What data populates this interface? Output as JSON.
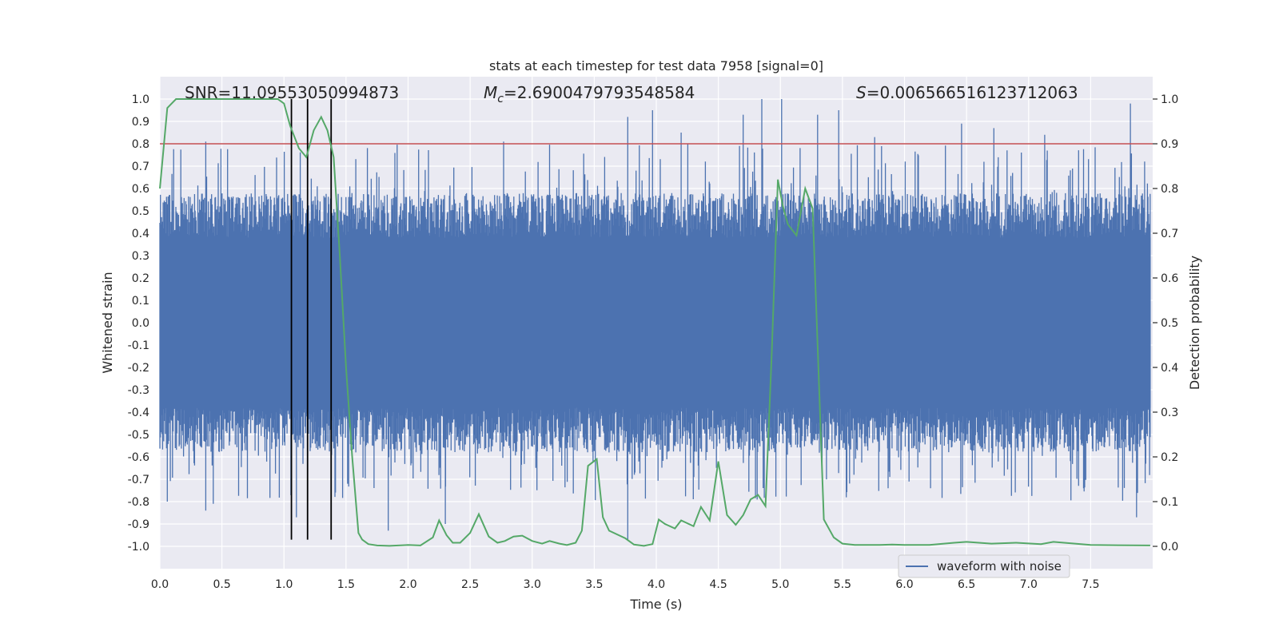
{
  "chart_data": {
    "type": "line",
    "title": "stats at each timestep for test data 7958 [signal=0]",
    "xlabel": "Time (s)",
    "ylabel": "Whitened strain",
    "y2label": "Detection probability",
    "xlim": [
      0.0,
      8.0
    ],
    "ylim": [
      -1.1,
      1.1
    ],
    "y2lim": [
      -0.05,
      1.05
    ],
    "xticks": [
      0.0,
      0.5,
      1.0,
      1.5,
      2.0,
      2.5,
      3.0,
      3.5,
      4.0,
      4.5,
      5.0,
      5.5,
      6.0,
      6.5,
      7.0,
      7.5
    ],
    "xtick_labels": [
      "0.0",
      "0.5",
      "1.0",
      "1.5",
      "2.0",
      "2.5",
      "3.0",
      "3.5",
      "4.0",
      "4.5",
      "5.0",
      "5.5",
      "6.0",
      "6.5",
      "7.0",
      "7.5"
    ],
    "yticks": [
      1.0,
      0.9,
      0.8,
      0.7,
      0.6,
      0.5,
      0.4,
      0.3,
      0.2,
      0.1,
      0.0,
      -0.1,
      -0.2,
      -0.3,
      -0.4,
      -0.5,
      -0.6,
      -0.7,
      -0.8,
      -0.9,
      -1.0
    ],
    "ytick_labels": [
      "1.0",
      "0.9",
      "0.8",
      "0.7",
      "0.6",
      "0.5",
      "0.4",
      "0.3",
      "0.2",
      "0.1",
      "0.0",
      "-0.1",
      "-0.2",
      "-0.3",
      "-0.4",
      "-0.5",
      "-0.6",
      "-0.7",
      "-0.8",
      "-0.9",
      "-1.0"
    ],
    "y2ticks": [
      1.0,
      0.9,
      0.8,
      0.7,
      0.6,
      0.5,
      0.4,
      0.3,
      0.2,
      0.1,
      0.0
    ],
    "y2tick_labels": [
      "1.0",
      "0.9",
      "0.8",
      "0.7",
      "0.6",
      "0.5",
      "0.4",
      "0.3",
      "0.2",
      "0.1",
      "0.0"
    ],
    "annotations": {
      "snr": "SNR=11.09553050994873",
      "mc": "=2.6900479793548584",
      "mc_symbol": "M",
      "mc_sub": "c",
      "s_symbol": "S",
      "s": "=0.006566516123712063"
    },
    "legend": [
      "waveform with noise"
    ],
    "threshold_line": {
      "y2": 0.9,
      "color": "#c44e52"
    },
    "vertical_markers": [
      1.06,
      1.19,
      1.38
    ],
    "series": [
      {
        "name": "waveform with noise",
        "axis": "left",
        "color": "#4c72b0",
        "core_amplitude": 0.38,
        "peaks": [
          {
            "t": 0.37,
            "v": 0.81
          },
          {
            "t": 0.37,
            "v": -0.84
          },
          {
            "t": 0.06,
            "v": -0.8
          },
          {
            "t": 0.43,
            "v": -0.81
          },
          {
            "t": 1.1,
            "v": -0.87
          },
          {
            "t": 1.84,
            "v": -0.93
          },
          {
            "t": 2.3,
            "v": -0.9
          },
          {
            "t": 2.77,
            "v": 0.81
          },
          {
            "t": 3.77,
            "v": 0.92
          },
          {
            "t": 3.77,
            "v": -0.97
          },
          {
            "t": 3.97,
            "v": 0.95
          },
          {
            "t": 4.2,
            "v": 0.85
          },
          {
            "t": 4.7,
            "v": 0.93
          },
          {
            "t": 4.85,
            "v": 1.0
          },
          {
            "t": 5.01,
            "v": 1.0
          },
          {
            "t": 5.3,
            "v": 0.93
          },
          {
            "t": 5.47,
            "v": 0.95
          },
          {
            "t": 5.76,
            "v": 0.83
          },
          {
            "t": 6.46,
            "v": 0.89
          },
          {
            "t": 6.72,
            "v": 0.87
          },
          {
            "t": 7.13,
            "v": 0.84
          },
          {
            "t": 7.82,
            "v": 0.98
          },
          {
            "t": 7.87,
            "v": -0.87
          }
        ]
      },
      {
        "name": "detection probability",
        "axis": "right",
        "color": "#55a868",
        "x": [
          0.0,
          0.06,
          0.13,
          0.25,
          0.5,
          0.75,
          0.95,
          1.0,
          1.05,
          1.12,
          1.18,
          1.24,
          1.3,
          1.35,
          1.4,
          1.45,
          1.5,
          1.55,
          1.6,
          1.63,
          1.68,
          1.75,
          1.85,
          2.0,
          2.1,
          2.2,
          2.25,
          2.31,
          2.36,
          2.42,
          2.5,
          2.57,
          2.65,
          2.72,
          2.78,
          2.85,
          2.92,
          3.0,
          3.08,
          3.14,
          3.22,
          3.28,
          3.35,
          3.4,
          3.45,
          3.52,
          3.57,
          3.62,
          3.75,
          3.82,
          3.9,
          3.97,
          4.02,
          4.07,
          4.15,
          4.2,
          4.3,
          4.36,
          4.43,
          4.5,
          4.57,
          4.64,
          4.7,
          4.76,
          4.82,
          4.88,
          4.93,
          4.98,
          5.02,
          5.06,
          5.13,
          5.2,
          5.26,
          5.3,
          5.35,
          5.43,
          5.5,
          5.6,
          5.8,
          5.9,
          6.0,
          6.2,
          6.4,
          6.5,
          6.7,
          6.9,
          7.1,
          7.2,
          7.5,
          7.98
        ],
        "values": [
          0.8,
          0.98,
          1.0,
          1.0,
          1.0,
          1.0,
          1.0,
          0.99,
          0.94,
          0.89,
          0.87,
          0.93,
          0.96,
          0.93,
          0.87,
          0.65,
          0.4,
          0.2,
          0.03,
          0.015,
          0.005,
          0.002,
          0.001,
          0.003,
          0.002,
          0.02,
          0.058,
          0.025,
          0.008,
          0.008,
          0.03,
          0.072,
          0.022,
          0.008,
          0.012,
          0.022,
          0.024,
          0.012,
          0.006,
          0.012,
          0.006,
          0.003,
          0.008,
          0.035,
          0.18,
          0.195,
          0.065,
          0.035,
          0.018,
          0.004,
          0.001,
          0.005,
          0.06,
          0.05,
          0.04,
          0.058,
          0.045,
          0.088,
          0.058,
          0.19,
          0.07,
          0.048,
          0.07,
          0.105,
          0.115,
          0.09,
          0.43,
          0.82,
          0.76,
          0.72,
          0.695,
          0.8,
          0.755,
          0.45,
          0.06,
          0.02,
          0.006,
          0.003,
          0.003,
          0.004,
          0.003,
          0.003,
          0.008,
          0.01,
          0.006,
          0.008,
          0.005,
          0.01,
          0.003,
          0.002
        ]
      }
    ]
  }
}
